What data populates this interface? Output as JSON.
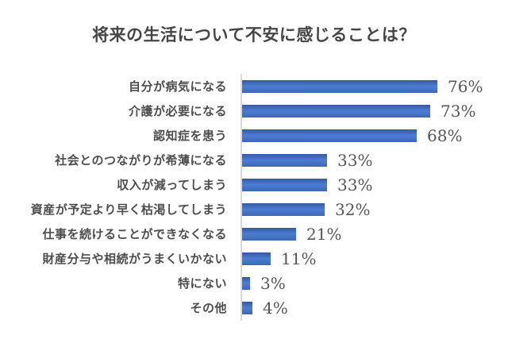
{
  "title": "将来の生活について不安に感じることは？",
  "colors": {
    "bar_gradient_top": "#365a9e",
    "bar_gradient_mid": "#4c7cd4",
    "bar_gradient_bottom": "#3e68b6",
    "title_text": "#464646",
    "category_text": "#4d4d4d",
    "value_text": "#555555",
    "axis_line": "#d9d9d9",
    "background": "#ffffff"
  },
  "chart_data": {
    "type": "bar",
    "orientation": "horizontal",
    "title": "将来の生活について不安に感じることは？",
    "categories": [
      "自分が病気になる",
      "介護が必要になる",
      "認知症を患う",
      "社会とのつながりが希薄になる",
      "収入が減ってしまう",
      "資産が予定より早く枯渇してしまう",
      "仕事を続けることができなくなる",
      "財産分与や相続がうまくいかない",
      "特にない",
      "その他"
    ],
    "values": [
      76,
      73,
      68,
      33,
      33,
      32,
      21,
      11,
      3,
      4
    ],
    "value_labels": [
      "76%",
      "73%",
      "68%",
      "33%",
      "33%",
      "32%",
      "21%",
      "11%",
      "3%",
      "4%"
    ],
    "unit": "%",
    "xlabel": "",
    "ylabel": "",
    "xlim": [
      0,
      80
    ],
    "grid": false,
    "legend": false,
    "data_labels": "outside-end"
  }
}
